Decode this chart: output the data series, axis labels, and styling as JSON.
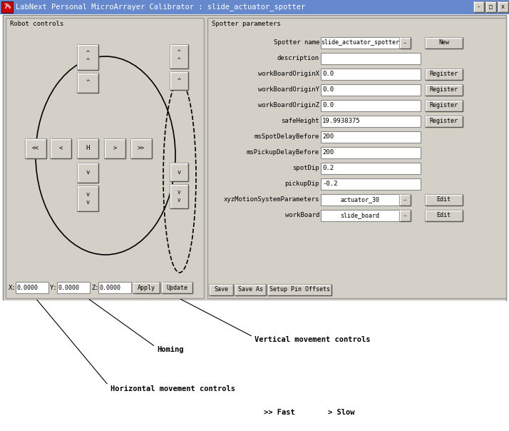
{
  "title": "LabNext Personal MicroArrayer Calibrator : slide_actuator_spotter",
  "win_bg": "#d4d0c8",
  "title_bar_color": "#6688cc",
  "title_text_color": "#ffffff",
  "field_bg": "#ffffff",
  "button_bg": "#d4d0c8",
  "fig_bg": "#ffffff",
  "spotter_name": "slide_actuator_spotter",
  "description": "",
  "workBoardOriginX": "0.0",
  "workBoardOriginY": "0.0",
  "workBoardOriginZ": "0.0",
  "safeHeight": "19.9938375",
  "msSpotDelayBefore": "200",
  "msPickupDelayBefore": "200",
  "spotDip": "0.2",
  "pickupDip": "-0.2",
  "xyzMotionSystemParameters": "actuator_30",
  "workBoard": "slide_board",
  "annotation_homing": "Homing",
  "annotation_vertical": "Vertical movement controls",
  "annotation_horizontal": "Horizontal movement controls",
  "annotation_fast": ">> Fast",
  "annotation_slow": "> Slow"
}
